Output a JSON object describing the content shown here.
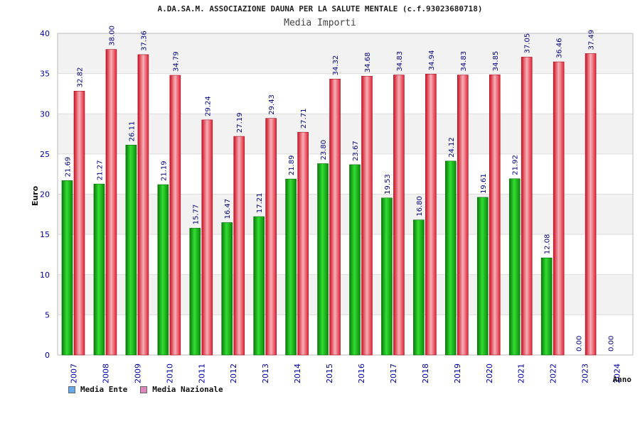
{
  "title": "A.DA.SA.M. ASSOCIAZIONE DAUNA PER LA SALUTE MENTALE (c.f.93023680718)",
  "subtitle": "Media Importi",
  "colors": {
    "ente": "#22bb22",
    "nazionale": "#ee3344",
    "legend_ente": "#66aaee",
    "legend_nazionale": "#dd88bb",
    "value_label": "#000080",
    "tick_label": "#0000aa"
  },
  "chart_data": {
    "type": "bar",
    "categories": [
      "2007",
      "2008",
      "2009",
      "2010",
      "2011",
      "2012",
      "2013",
      "2014",
      "2015",
      "2016",
      "2017",
      "2018",
      "2019",
      "2020",
      "2021",
      "2022",
      "2023",
      "2024"
    ],
    "series": [
      {
        "name": "Media Ente",
        "values": [
          21.69,
          21.27,
          26.11,
          21.19,
          15.77,
          16.47,
          17.21,
          21.89,
          23.8,
          23.67,
          19.53,
          16.8,
          24.12,
          19.61,
          21.92,
          12.08,
          0.0,
          0.0
        ],
        "labels": [
          "21.69",
          "21.27",
          "26.11",
          "21.19",
          "15.77",
          "16.47",
          "17.21",
          "21.89",
          "23.80",
          "23.67",
          "19.53",
          "16.80",
          "24.12",
          "19.61",
          "21.92",
          "12.08",
          "0.00",
          "0.00"
        ]
      },
      {
        "name": "Media Nazionale",
        "values": [
          32.82,
          38.0,
          37.36,
          34.79,
          29.24,
          27.19,
          29.43,
          27.71,
          34.32,
          34.68,
          34.83,
          34.94,
          34.83,
          34.85,
          37.05,
          36.46,
          37.49,
          null
        ],
        "labels": [
          "32.82",
          "38.00",
          "37.36",
          "34.79",
          "29.24",
          "27.19",
          "29.43",
          "27.71",
          "34.32",
          "34.68",
          "34.83",
          "34.94",
          "34.83",
          "34.85",
          "37.05",
          "36.46",
          "37.49",
          ""
        ]
      }
    ],
    "xlabel": "Anno",
    "ylabel": "Euro",
    "ylim": [
      0,
      40
    ],
    "yticks": [
      "0",
      "5",
      "10",
      "15",
      "20",
      "25",
      "30",
      "35",
      "40"
    ],
    "grid": true,
    "legend_position": "bottom-left"
  }
}
